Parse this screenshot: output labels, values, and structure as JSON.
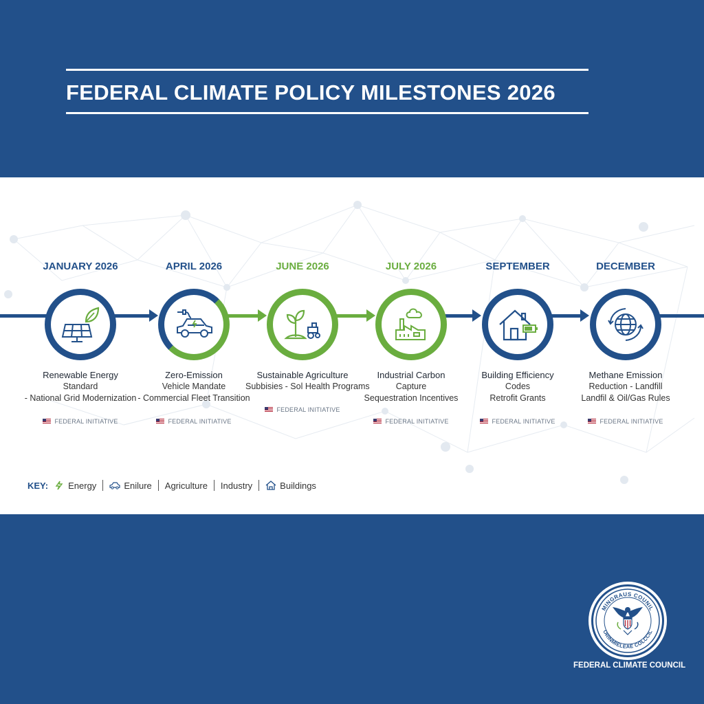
{
  "title": "FEDERAL CLIMATE POLICY MILESTONES 2026",
  "colors": {
    "primary_blue": "#22508a",
    "accent_green": "#6aad3f",
    "white": "#ffffff"
  },
  "milestones": [
    {
      "date": "JANUARY 2026",
      "title": "Renewable Energy",
      "sub1": "Standard",
      "sub2": "- National Grid Modernization",
      "tag": "FEDERAL INITIATIVE",
      "icon": "solar-panel-leaf-icon",
      "theme": "blue"
    },
    {
      "date": "APRIL 2026",
      "title": "Zero-Emission",
      "sub1": "Vehicle Mandate",
      "sub2": "- Commercial Fleet Transition",
      "tag": "FEDERAL INITIATIVE",
      "icon": "electric-car-icon",
      "theme": "split"
    },
    {
      "date": "JUNE 2026",
      "title": "Sustainable Agriculture",
      "sub1": "Subbisies - Sol Health Programs",
      "sub2": "",
      "tag": "FEDERAL INITIATIVE",
      "icon": "sprout-tractor-icon",
      "theme": "green"
    },
    {
      "date": "JULY 2026",
      "title": "Industrial Carbon",
      "sub1": "Capture",
      "sub2": "Sequestration Incentives",
      "tag": "FEDERAL INITIATIVE",
      "icon": "factory-icon",
      "theme": "green"
    },
    {
      "date": "SEPTEMBER",
      "title": "Building Efficiency",
      "sub1": "Codes",
      "sub2": "Retrofit Grants",
      "tag": "FEDERAL INITIATIVE",
      "icon": "house-battery-icon",
      "theme": "blue"
    },
    {
      "date": "DECEMBER",
      "title": "Methane Emission",
      "sub1": "Reduction - Landfill",
      "sub2": "Landfil & Oil/Gas Rules",
      "tag": "FEDERAL INITIATIVE",
      "icon": "globe-cycle-icon",
      "theme": "blue"
    }
  ],
  "key": {
    "label": "KEY:",
    "items": [
      {
        "label": "Energy",
        "icon": "lightning-icon"
      },
      {
        "label": "Enilure",
        "icon": "car-icon"
      },
      {
        "label": "Agriculture",
        "icon": ""
      },
      {
        "label": "Industry",
        "icon": ""
      },
      {
        "label": "Buildings",
        "icon": "house-icon"
      }
    ]
  },
  "seal": {
    "top_text": "MINGRAUS COUNIL",
    "bottom_text": "ORINMIELEAE COLCCIL"
  },
  "council_name": "FEDERAL CLIMATE COUNCIL"
}
